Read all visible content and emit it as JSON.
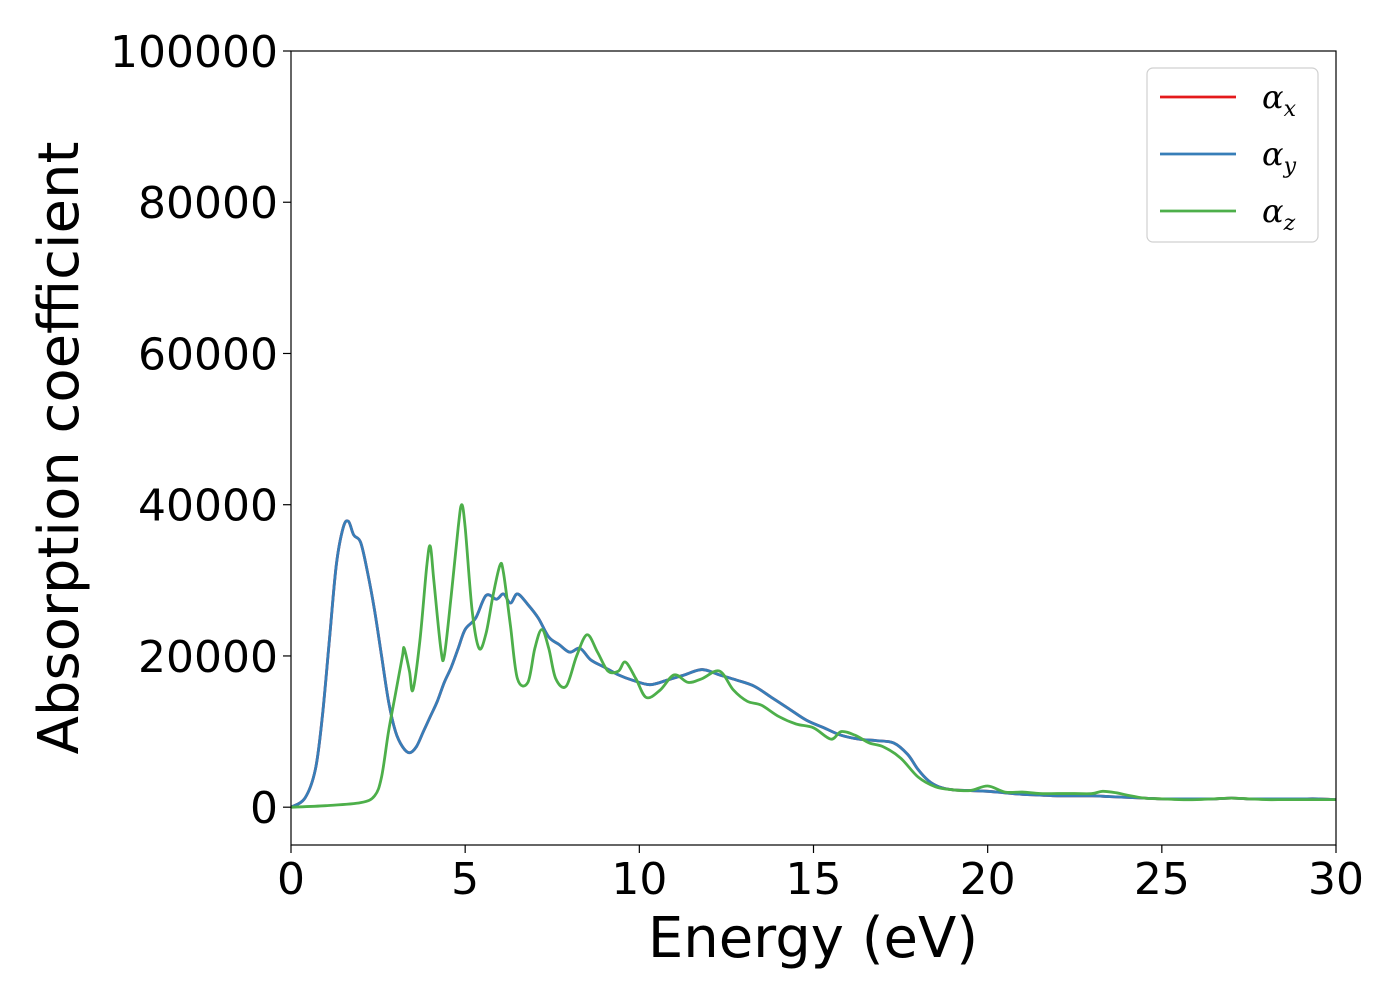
{
  "chart_data": {
    "type": "line",
    "xlabel": "Energy (eV)",
    "ylabel": "Absorption coefficient",
    "xlim": [
      0,
      30
    ],
    "ylim": [
      -5000,
      100000
    ],
    "x_ticks": [
      0,
      5,
      10,
      15,
      20,
      25,
      30
    ],
    "y_ticks": [
      0,
      20000,
      40000,
      60000,
      80000,
      100000
    ],
    "x_tick_labels": [
      "0",
      "5",
      "10",
      "15",
      "20",
      "25",
      "30"
    ],
    "y_tick_labels": [
      "0",
      "20000",
      "40000",
      "60000",
      "80000",
      "100000"
    ],
    "grid": false,
    "legend_position": "top-right",
    "series": [
      {
        "name": "α",
        "subscript": "x",
        "color": "#e41a1c",
        "x": [
          0,
          0.4,
          0.7,
          0.9,
          1.1,
          1.3,
          1.5,
          1.65,
          1.8,
          2.0,
          2.2,
          2.4,
          2.6,
          2.8,
          3.0,
          3.2,
          3.4,
          3.6,
          3.8,
          4.0,
          4.2,
          4.4,
          4.6,
          4.8,
          5.0,
          5.3,
          5.6,
          5.9,
          6.1,
          6.3,
          6.5,
          6.8,
          7.1,
          7.4,
          7.7,
          8.0,
          8.3,
          8.6,
          9.0,
          9.4,
          9.8,
          10.3,
          10.8,
          11.3,
          11.8,
          12.3,
          12.8,
          13.3,
          13.8,
          14.3,
          14.8,
          15.3,
          15.8,
          16.3,
          16.8,
          17.3,
          17.7,
          18.0,
          18.3,
          18.6,
          19.0,
          19.5,
          20.0,
          20.5,
          21.0,
          21.5,
          22.0,
          22.5,
          23.0,
          23.5,
          24.0,
          24.5,
          25.0,
          25.5,
          26.0,
          26.5,
          27.0,
          27.5,
          28.0,
          28.5,
          29.0,
          29.5,
          30.0
        ],
        "values": [
          0,
          1200,
          5000,
          12000,
          22000,
          32000,
          37000,
          37800,
          36000,
          35000,
          31000,
          26000,
          20000,
          14000,
          10000,
          8000,
          7200,
          8000,
          10000,
          12000,
          14000,
          16500,
          18500,
          21000,
          23500,
          25000,
          28000,
          27500,
          28200,
          27000,
          28200,
          26800,
          25000,
          22500,
          21500,
          20500,
          21000,
          19500,
          18500,
          17500,
          16800,
          16200,
          16800,
          17500,
          18200,
          17500,
          16800,
          16000,
          14500,
          13000,
          11500,
          10500,
          9500,
          9000,
          8800,
          8500,
          7000,
          5000,
          3500,
          2700,
          2300,
          2200,
          2100,
          1900,
          1700,
          1600,
          1500,
          1500,
          1500,
          1400,
          1300,
          1200,
          1100,
          1100,
          1100,
          1100,
          1200,
          1100,
          1100,
          1100,
          1100,
          1100,
          1000
        ]
      },
      {
        "name": "α",
        "subscript": "y",
        "color": "#377eb8",
        "x": [
          0,
          0.4,
          0.7,
          0.9,
          1.1,
          1.3,
          1.5,
          1.65,
          1.8,
          2.0,
          2.2,
          2.4,
          2.6,
          2.8,
          3.0,
          3.2,
          3.4,
          3.6,
          3.8,
          4.0,
          4.2,
          4.4,
          4.6,
          4.8,
          5.0,
          5.3,
          5.6,
          5.9,
          6.1,
          6.3,
          6.5,
          6.8,
          7.1,
          7.4,
          7.7,
          8.0,
          8.3,
          8.6,
          9.0,
          9.4,
          9.8,
          10.3,
          10.8,
          11.3,
          11.8,
          12.3,
          12.8,
          13.3,
          13.8,
          14.3,
          14.8,
          15.3,
          15.8,
          16.3,
          16.8,
          17.3,
          17.7,
          18.0,
          18.3,
          18.6,
          19.0,
          19.5,
          20.0,
          20.5,
          21.0,
          21.5,
          22.0,
          22.5,
          23.0,
          23.5,
          24.0,
          24.5,
          25.0,
          25.5,
          26.0,
          26.5,
          27.0,
          27.5,
          28.0,
          28.5,
          29.0,
          29.5,
          30.0
        ],
        "values": [
          0,
          1200,
          5000,
          12000,
          22000,
          32000,
          37000,
          37800,
          36000,
          35000,
          31000,
          26000,
          20000,
          14000,
          10000,
          8000,
          7200,
          8000,
          10000,
          12000,
          14000,
          16500,
          18500,
          21000,
          23500,
          25000,
          28000,
          27500,
          28200,
          27000,
          28200,
          26800,
          25000,
          22500,
          21500,
          20500,
          21000,
          19500,
          18500,
          17500,
          16800,
          16200,
          16800,
          17500,
          18200,
          17500,
          16800,
          16000,
          14500,
          13000,
          11500,
          10500,
          9500,
          9000,
          8800,
          8500,
          7000,
          5000,
          3500,
          2700,
          2300,
          2200,
          2100,
          1900,
          1700,
          1600,
          1500,
          1500,
          1500,
          1400,
          1300,
          1200,
          1100,
          1100,
          1100,
          1100,
          1200,
          1100,
          1100,
          1100,
          1100,
          1100,
          1000
        ]
      },
      {
        "name": "α",
        "subscript": "z",
        "color": "#4daf4a",
        "x": [
          0,
          1.0,
          2.0,
          2.4,
          2.6,
          2.8,
          3.0,
          3.2,
          3.25,
          3.4,
          3.5,
          3.7,
          3.9,
          4.0,
          4.1,
          4.3,
          4.4,
          4.6,
          4.8,
          4.9,
          5.0,
          5.2,
          5.4,
          5.6,
          5.8,
          6.0,
          6.1,
          6.3,
          6.5,
          6.8,
          7.0,
          7.2,
          7.4,
          7.6,
          7.9,
          8.2,
          8.5,
          8.8,
          9.1,
          9.4,
          9.6,
          9.9,
          10.2,
          10.6,
          11.0,
          11.4,
          11.8,
          12.3,
          12.7,
          13.1,
          13.5,
          14.0,
          14.5,
          15.0,
          15.5,
          15.8,
          16.2,
          16.6,
          17.0,
          17.5,
          18.0,
          18.5,
          19.0,
          19.5,
          20.0,
          20.5,
          21.0,
          21.5,
          22.0,
          22.5,
          23.0,
          23.3,
          23.7,
          24.0,
          24.5,
          25.0,
          25.5,
          26.0,
          26.5,
          27.0,
          27.5,
          28.0,
          28.5,
          29.0,
          29.5,
          30.0
        ],
        "values": [
          0,
          200,
          600,
          1500,
          4000,
          10000,
          15000,
          20000,
          21000,
          18000,
          15500,
          22000,
          32000,
          34500,
          30000,
          21000,
          20000,
          28000,
          37000,
          40000,
          37000,
          26000,
          21000,
          23000,
          28000,
          32000,
          31000,
          24000,
          17000,
          16500,
          21000,
          23500,
          21000,
          17000,
          16000,
          20000,
          22800,
          20500,
          18000,
          18000,
          19200,
          17000,
          14500,
          15500,
          17500,
          16500,
          17000,
          18000,
          15500,
          14000,
          13500,
          12000,
          11000,
          10500,
          9000,
          10000,
          9500,
          8500,
          8000,
          6500,
          4000,
          2700,
          2300,
          2200,
          2800,
          2000,
          2000,
          1800,
          1800,
          1800,
          1800,
          2100,
          1900,
          1600,
          1200,
          1100,
          1000,
          1000,
          1100,
          1200,
          1100,
          1000,
          1000,
          1000,
          1000,
          1000
        ]
      }
    ]
  }
}
